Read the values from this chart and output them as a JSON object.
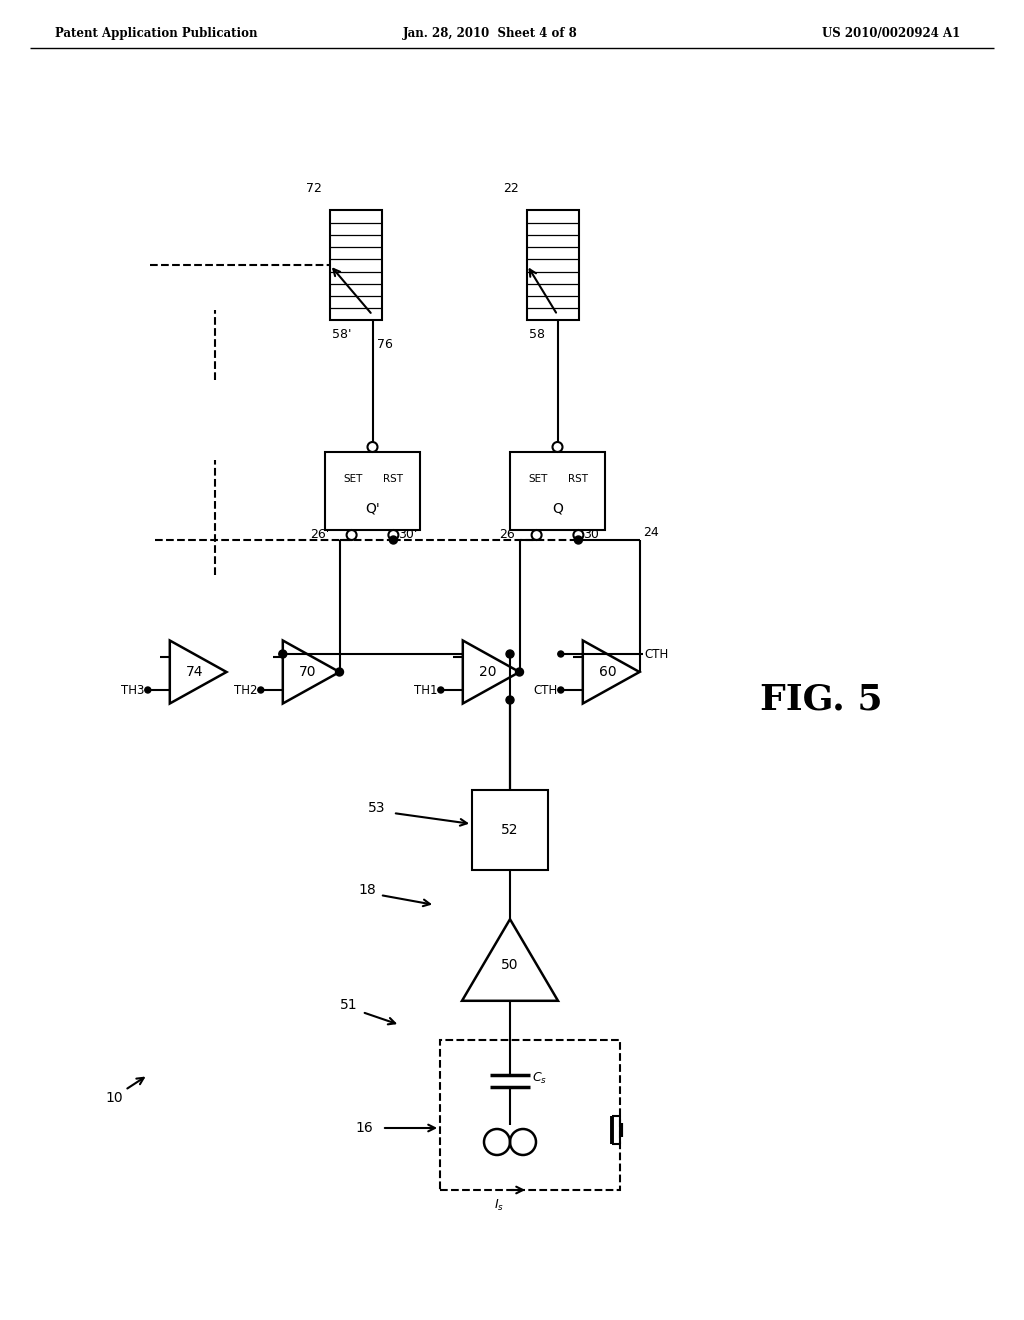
{
  "bg_color": "#ffffff",
  "line_color": "#000000",
  "header_left": "Patent Application Publication",
  "header_center": "Jan. 28, 2010  Sheet 4 of 8",
  "header_right": "US 2010/0020924 A1",
  "fig_label": "FIG. 5"
}
